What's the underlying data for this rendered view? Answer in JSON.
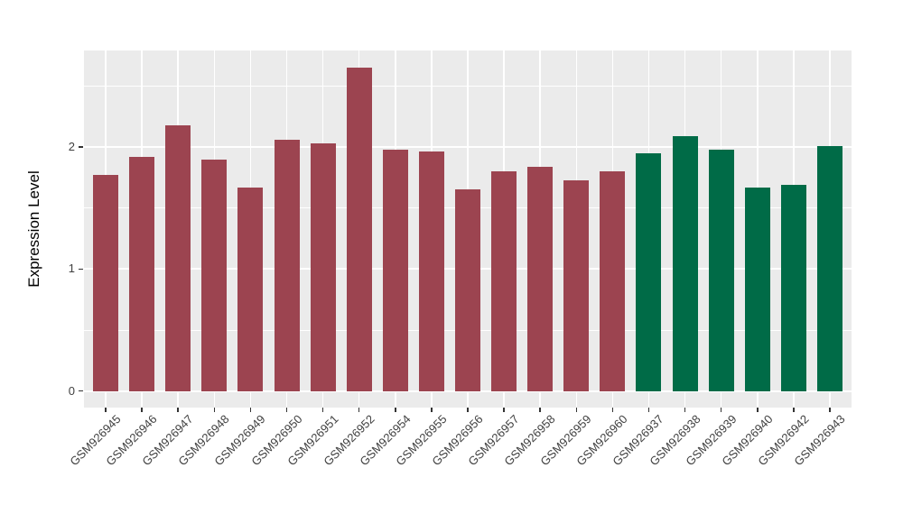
{
  "chart_data": {
    "type": "bar",
    "title": "",
    "xlabel": "",
    "ylabel": "Expression Level",
    "categories": [
      "GSM926945",
      "GSM926946",
      "GSM926947",
      "GSM926948",
      "GSM926949",
      "GSM926950",
      "GSM926951",
      "GSM926952",
      "GSM926954",
      "GSM926955",
      "GSM926956",
      "GSM926957",
      "GSM926958",
      "GSM926959",
      "GSM926960",
      "GSM926937",
      "GSM926938",
      "GSM926939",
      "GSM926940",
      "GSM926942",
      "GSM926943"
    ],
    "values": [
      1.77,
      1.92,
      2.18,
      1.9,
      1.67,
      2.06,
      2.03,
      2.65,
      1.98,
      1.96,
      1.65,
      1.8,
      1.84,
      1.73,
      1.8,
      1.95,
      2.09,
      1.98,
      1.67,
      1.69,
      2.01
    ],
    "bar_groups": [
      0,
      0,
      0,
      0,
      0,
      0,
      0,
      0,
      0,
      0,
      0,
      0,
      0,
      0,
      0,
      1,
      1,
      1,
      1,
      1,
      1
    ],
    "group_colors": [
      "#9C4450",
      "#006B47"
    ],
    "yticks": [
      0,
      1,
      2
    ],
    "ytick_labels": [
      "0",
      "1",
      "2"
    ],
    "yticks_minor": [
      0.5,
      1.5,
      2.5
    ],
    "ylim": [
      0,
      2.79
    ],
    "legend": "none",
    "grid": "horizontal major+minor, vertical major at category centers",
    "panel_background": "#EBEBEB",
    "gridline_color": "#FFFFFF",
    "axis_text_color": "#404040",
    "axis_title_color": "#000000",
    "tick_mark_color": "#333333"
  }
}
